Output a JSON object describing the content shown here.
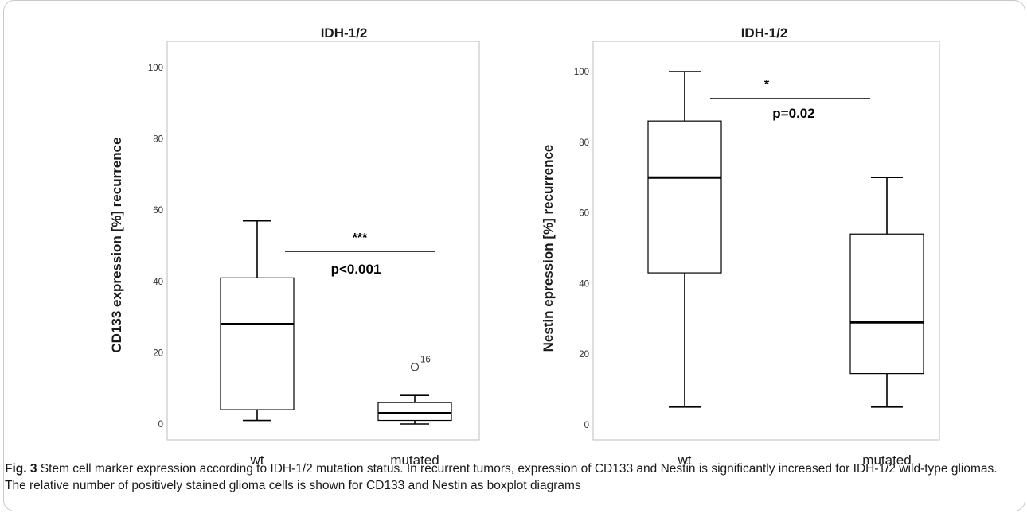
{
  "chart_data": [
    {
      "type": "box",
      "title": "IDH-1/2",
      "ylabel": "CD133 expression [%] recurrence",
      "xlabel": "",
      "categories": [
        "wt",
        "mutated"
      ],
      "ylim": [
        0,
        100
      ],
      "yticks": [
        0,
        20,
        40,
        60,
        80,
        100
      ],
      "grid": false,
      "boxes": [
        {
          "category": "wt",
          "whisker_low": 1,
          "q1": 4,
          "median": 28,
          "q3": 41,
          "whisker_high": 57
        },
        {
          "category": "mutated",
          "whisker_low": 0,
          "q1": 1,
          "median": 3,
          "q3": 6,
          "whisker_high": 8
        }
      ],
      "outliers": [
        {
          "category": "mutated",
          "value": 16,
          "label": "16"
        }
      ],
      "significance": {
        "stars": "***",
        "p_label": "p<0.001"
      }
    },
    {
      "type": "box",
      "title": "IDH-1/2",
      "ylabel": "Nestin epression [%] recurrence",
      "xlabel": "",
      "categories": [
        "wt",
        "mutated"
      ],
      "ylim": [
        0,
        100
      ],
      "yticks": [
        0,
        20,
        40,
        60,
        80,
        100
      ],
      "grid": false,
      "boxes": [
        {
          "category": "wt",
          "whisker_low": 5,
          "q1": 43,
          "median": 70,
          "q3": 86,
          "whisker_high": 100
        },
        {
          "category": "mutated",
          "whisker_low": 5,
          "q1": 14.5,
          "median": 29,
          "q3": 54,
          "whisker_high": 70
        }
      ],
      "outliers": [],
      "significance": {
        "stars": "*",
        "p_label": "p=0.02"
      }
    }
  ],
  "caption": {
    "label": "Fig. 3",
    "text": "Stem cell marker expression according to IDH-1/2 mutation status. In recurrent tumors, expression of CD133 and Nestin is significantly increased for IDH-1/2 wild-type gliomas. The relative number of positively stained glioma cells is shown for CD133 and Nestin as boxplot diagrams"
  }
}
